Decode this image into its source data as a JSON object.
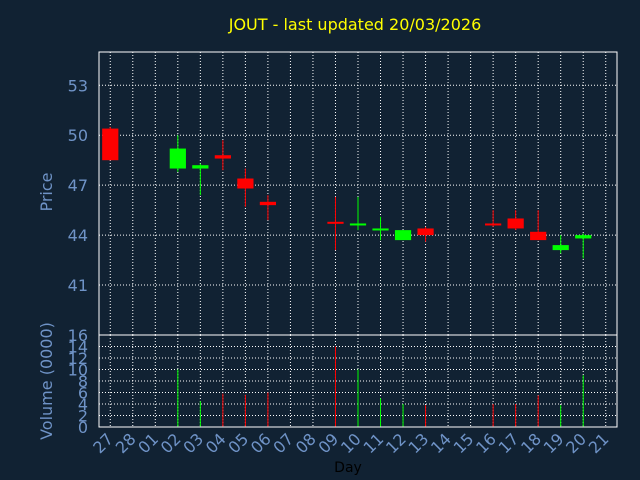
{
  "chart_data": {
    "type": "candlestick",
    "title": "JOUT - last updated 20/03/2026",
    "xlabel": "Day",
    "price_panel": {
      "ylabel": "Price",
      "ylim": [
        38,
        55
      ],
      "yticks": [
        41,
        44,
        47,
        50,
        53
      ],
      "grid": true
    },
    "volume_panel": {
      "ylabel": "Volume (0000)",
      "ylim": [
        0,
        16
      ],
      "yticks": [
        0,
        2,
        4,
        6,
        8,
        10,
        12,
        14,
        16
      ],
      "grid": true
    },
    "x_ticks": [
      "27",
      "28",
      "01",
      "02",
      "03",
      "04",
      "05",
      "06",
      "07",
      "08",
      "09",
      "10",
      "11",
      "12",
      "13",
      "14",
      "15",
      "16",
      "17",
      "18",
      "19",
      "20",
      "21"
    ],
    "candles": [
      {
        "date": "27",
        "open": 50.4,
        "high": 50.5,
        "low": 48.5,
        "close": 48.5,
        "volume": 0
      },
      {
        "date": "02",
        "open": 48.0,
        "high": 50.0,
        "low": 47.8,
        "close": 49.2,
        "volume": 10.0
      },
      {
        "date": "03",
        "open": 48.0,
        "high": 48.3,
        "low": 46.4,
        "close": 48.2,
        "volume": 4.5
      },
      {
        "date": "04",
        "open": 48.8,
        "high": 49.7,
        "low": 47.9,
        "close": 48.6,
        "volume": 5.8
      },
      {
        "date": "05",
        "open": 47.4,
        "high": 48.0,
        "low": 45.7,
        "close": 46.8,
        "volume": 5.6
      },
      {
        "date": "06",
        "open": 46.0,
        "high": 46.4,
        "low": 44.9,
        "close": 45.8,
        "volume": 6.0
      },
      {
        "date": "09",
        "open": 44.8,
        "high": 46.3,
        "low": 43.1,
        "close": 44.7,
        "volume": 14.0
      },
      {
        "date": "10",
        "open": 44.6,
        "high": 46.3,
        "low": 44.3,
        "close": 44.7,
        "volume": 10.0
      },
      {
        "date": "11",
        "open": 44.3,
        "high": 45.1,
        "low": 43.7,
        "close": 44.4,
        "volume": 5.0
      },
      {
        "date": "12",
        "open": 43.7,
        "high": 44.3,
        "low": 43.7,
        "close": 44.3,
        "volume": 4.0
      },
      {
        "date": "13",
        "open": 44.4,
        "high": 44.5,
        "low": 43.6,
        "close": 44.0,
        "volume": 3.8
      },
      {
        "date": "16",
        "open": 44.7,
        "high": 45.5,
        "low": 44.5,
        "close": 44.6,
        "volume": 4.0
      },
      {
        "date": "17",
        "open": 45.0,
        "high": 45.5,
        "low": 44.3,
        "close": 44.4,
        "volume": 4.0
      },
      {
        "date": "18",
        "open": 44.2,
        "high": 45.5,
        "low": 43.7,
        "close": 43.7,
        "volume": 5.5
      },
      {
        "date": "19",
        "open": 43.1,
        "high": 44.0,
        "low": 42.9,
        "close": 43.4,
        "volume": 3.8
      },
      {
        "date": "20",
        "open": 43.8,
        "high": 44.1,
        "low": 42.6,
        "close": 44.0,
        "volume": 9.0
      }
    ],
    "colors": {
      "background": "#112233",
      "up": "#00FF00",
      "down": "#FF0000",
      "grid": "#FFFFFF",
      "axis_text": "#6F93C7",
      "title": "#FFFF00",
      "xlabel": "#000000"
    }
  }
}
